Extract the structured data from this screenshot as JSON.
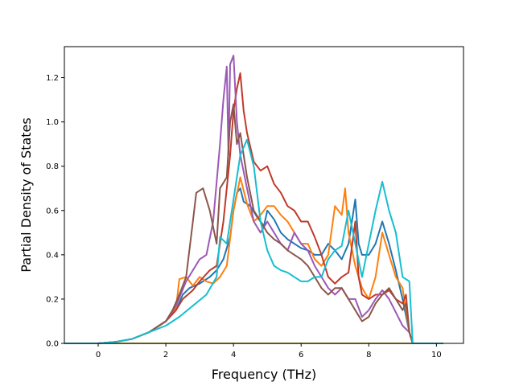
{
  "chart_data": {
    "type": "line",
    "title": "",
    "xlabel": "Frequency (THz)",
    "ylabel": "Partial Density of States",
    "xlim": [
      -1.0,
      10.8
    ],
    "ylim": [
      0.0,
      1.34
    ],
    "xticks": [
      0,
      2,
      4,
      6,
      8,
      10
    ],
    "xtick_labels": [
      "0",
      "2",
      "4",
      "6",
      "8",
      "10"
    ],
    "yticks": [
      0.0,
      0.2,
      0.4,
      0.6,
      0.8,
      1.0,
      1.2
    ],
    "ytick_labels": [
      "0.0",
      "0.2",
      "0.4",
      "0.6",
      "0.8",
      "1.0",
      "1.2"
    ],
    "grid": false,
    "legend": "none",
    "series": [
      {
        "color": "#1f77b4",
        "points": [
          [
            -1.0,
            0.0
          ],
          [
            0.0,
            0.0
          ],
          [
            0.5,
            0.006
          ],
          [
            1.0,
            0.02
          ],
          [
            1.5,
            0.05
          ],
          [
            2.0,
            0.1
          ],
          [
            2.3,
            0.15
          ],
          [
            2.5,
            0.22
          ],
          [
            2.7,
            0.25
          ],
          [
            3.0,
            0.27
          ],
          [
            3.3,
            0.3
          ],
          [
            3.5,
            0.33
          ],
          [
            3.7,
            0.38
          ],
          [
            3.9,
            0.48
          ],
          [
            4.0,
            0.6
          ],
          [
            4.1,
            0.68
          ],
          [
            4.2,
            0.7
          ],
          [
            4.3,
            0.64
          ],
          [
            4.5,
            0.62
          ],
          [
            4.7,
            0.57
          ],
          [
            4.9,
            0.53
          ],
          [
            5.0,
            0.6
          ],
          [
            5.2,
            0.56
          ],
          [
            5.4,
            0.5
          ],
          [
            5.6,
            0.47
          ],
          [
            5.8,
            0.45
          ],
          [
            6.0,
            0.43
          ],
          [
            6.2,
            0.42
          ],
          [
            6.4,
            0.4
          ],
          [
            6.6,
            0.4
          ],
          [
            6.8,
            0.45
          ],
          [
            7.0,
            0.42
          ],
          [
            7.2,
            0.38
          ],
          [
            7.4,
            0.45
          ],
          [
            7.6,
            0.65
          ],
          [
            7.7,
            0.45
          ],
          [
            7.8,
            0.4
          ],
          [
            8.0,
            0.4
          ],
          [
            8.2,
            0.45
          ],
          [
            8.4,
            0.55
          ],
          [
            8.6,
            0.45
          ],
          [
            8.8,
            0.33
          ],
          [
            9.0,
            0.2
          ],
          [
            9.2,
            0.05
          ],
          [
            9.3,
            0.0
          ],
          [
            10.2,
            0.0
          ]
        ]
      },
      {
        "color": "#ff7f0e",
        "points": [
          [
            -1.0,
            0.0
          ],
          [
            0.0,
            0.0
          ],
          [
            0.5,
            0.006
          ],
          [
            1.0,
            0.02
          ],
          [
            1.5,
            0.05
          ],
          [
            2.0,
            0.1
          ],
          [
            2.3,
            0.16
          ],
          [
            2.4,
            0.29
          ],
          [
            2.6,
            0.3
          ],
          [
            2.8,
            0.26
          ],
          [
            3.0,
            0.3
          ],
          [
            3.2,
            0.28
          ],
          [
            3.4,
            0.27
          ],
          [
            3.6,
            0.3
          ],
          [
            3.8,
            0.35
          ],
          [
            4.0,
            0.6
          ],
          [
            4.2,
            0.75
          ],
          [
            4.4,
            0.63
          ],
          [
            4.6,
            0.55
          ],
          [
            4.8,
            0.58
          ],
          [
            5.0,
            0.62
          ],
          [
            5.2,
            0.62
          ],
          [
            5.4,
            0.58
          ],
          [
            5.6,
            0.55
          ],
          [
            5.8,
            0.5
          ],
          [
            6.0,
            0.45
          ],
          [
            6.2,
            0.45
          ],
          [
            6.4,
            0.38
          ],
          [
            6.6,
            0.35
          ],
          [
            6.8,
            0.4
          ],
          [
            7.0,
            0.62
          ],
          [
            7.2,
            0.58
          ],
          [
            7.3,
            0.7
          ],
          [
            7.4,
            0.5
          ],
          [
            7.6,
            0.35
          ],
          [
            7.8,
            0.25
          ],
          [
            8.0,
            0.2
          ],
          [
            8.2,
            0.3
          ],
          [
            8.4,
            0.5
          ],
          [
            8.6,
            0.4
          ],
          [
            8.8,
            0.3
          ],
          [
            9.0,
            0.25
          ],
          [
            9.2,
            0.05
          ],
          [
            9.3,
            0.0
          ],
          [
            10.2,
            0.0
          ]
        ]
      },
      {
        "color": "#bcbd22",
        "points": [
          [
            -1.0,
            0.0
          ],
          [
            10.2,
            0.0
          ]
        ]
      },
      {
        "color": "#c0392b",
        "points": [
          [
            -1.0,
            0.0
          ],
          [
            0.0,
            0.0
          ],
          [
            0.5,
            0.006
          ],
          [
            1.0,
            0.02
          ],
          [
            1.5,
            0.05
          ],
          [
            2.0,
            0.1
          ],
          [
            2.3,
            0.15
          ],
          [
            2.5,
            0.2
          ],
          [
            2.8,
            0.24
          ],
          [
            3.0,
            0.28
          ],
          [
            3.3,
            0.33
          ],
          [
            3.5,
            0.35
          ],
          [
            3.7,
            0.55
          ],
          [
            3.9,
            0.85
          ],
          [
            4.0,
            1.05
          ],
          [
            4.1,
            1.15
          ],
          [
            4.2,
            1.22
          ],
          [
            4.3,
            1.05
          ],
          [
            4.4,
            0.95
          ],
          [
            4.6,
            0.82
          ],
          [
            4.8,
            0.78
          ],
          [
            5.0,
            0.8
          ],
          [
            5.2,
            0.72
          ],
          [
            5.4,
            0.68
          ],
          [
            5.6,
            0.62
          ],
          [
            5.8,
            0.6
          ],
          [
            6.0,
            0.55
          ],
          [
            6.2,
            0.55
          ],
          [
            6.4,
            0.48
          ],
          [
            6.6,
            0.4
          ],
          [
            6.8,
            0.3
          ],
          [
            7.0,
            0.27
          ],
          [
            7.2,
            0.3
          ],
          [
            7.4,
            0.32
          ],
          [
            7.6,
            0.55
          ],
          [
            7.7,
            0.3
          ],
          [
            7.8,
            0.22
          ],
          [
            8.0,
            0.2
          ],
          [
            8.2,
            0.22
          ],
          [
            8.4,
            0.22
          ],
          [
            8.6,
            0.24
          ],
          [
            8.8,
            0.2
          ],
          [
            9.0,
            0.18
          ],
          [
            9.1,
            0.22
          ],
          [
            9.2,
            0.05
          ],
          [
            9.3,
            0.0
          ],
          [
            10.2,
            0.0
          ]
        ]
      },
      {
        "color": "#9b59b6",
        "points": [
          [
            -1.0,
            0.0
          ],
          [
            0.0,
            0.0
          ],
          [
            0.5,
            0.006
          ],
          [
            1.0,
            0.02
          ],
          [
            1.5,
            0.05
          ],
          [
            2.0,
            0.1
          ],
          [
            2.3,
            0.17
          ],
          [
            2.6,
            0.28
          ],
          [
            2.8,
            0.33
          ],
          [
            3.0,
            0.38
          ],
          [
            3.2,
            0.4
          ],
          [
            3.4,
            0.55
          ],
          [
            3.6,
            0.9
          ],
          [
            3.7,
            1.1
          ],
          [
            3.8,
            1.25
          ],
          [
            3.85,
            0.85
          ],
          [
            3.9,
            1.26
          ],
          [
            4.0,
            1.3
          ],
          [
            4.1,
            1.0
          ],
          [
            4.2,
            0.85
          ],
          [
            4.4,
            0.7
          ],
          [
            4.6,
            0.55
          ],
          [
            4.8,
            0.5
          ],
          [
            5.0,
            0.55
          ],
          [
            5.2,
            0.5
          ],
          [
            5.4,
            0.45
          ],
          [
            5.6,
            0.42
          ],
          [
            5.8,
            0.5
          ],
          [
            6.0,
            0.45
          ],
          [
            6.2,
            0.42
          ],
          [
            6.4,
            0.35
          ],
          [
            6.6,
            0.3
          ],
          [
            6.8,
            0.25
          ],
          [
            7.0,
            0.22
          ],
          [
            7.2,
            0.25
          ],
          [
            7.4,
            0.2
          ],
          [
            7.6,
            0.2
          ],
          [
            7.8,
            0.12
          ],
          [
            8.0,
            0.15
          ],
          [
            8.2,
            0.2
          ],
          [
            8.4,
            0.24
          ],
          [
            8.6,
            0.2
          ],
          [
            8.8,
            0.14
          ],
          [
            9.0,
            0.08
          ],
          [
            9.2,
            0.05
          ],
          [
            9.3,
            0.0
          ],
          [
            10.2,
            0.0
          ]
        ]
      },
      {
        "color": "#8c564b",
        "points": [
          [
            -1.0,
            0.0
          ],
          [
            0.0,
            0.0
          ],
          [
            0.5,
            0.006
          ],
          [
            1.0,
            0.02
          ],
          [
            1.5,
            0.05
          ],
          [
            2.0,
            0.1
          ],
          [
            2.2,
            0.15
          ],
          [
            2.4,
            0.22
          ],
          [
            2.6,
            0.3
          ],
          [
            2.8,
            0.55
          ],
          [
            2.9,
            0.68
          ],
          [
            3.1,
            0.7
          ],
          [
            3.3,
            0.6
          ],
          [
            3.5,
            0.45
          ],
          [
            3.6,
            0.7
          ],
          [
            3.8,
            0.75
          ],
          [
            3.9,
            1.0
          ],
          [
            4.0,
            1.08
          ],
          [
            4.1,
            0.9
          ],
          [
            4.2,
            0.95
          ],
          [
            4.4,
            0.75
          ],
          [
            4.6,
            0.6
          ],
          [
            4.8,
            0.55
          ],
          [
            5.0,
            0.5
          ],
          [
            5.2,
            0.47
          ],
          [
            5.4,
            0.45
          ],
          [
            5.6,
            0.42
          ],
          [
            5.8,
            0.4
          ],
          [
            6.0,
            0.38
          ],
          [
            6.2,
            0.35
          ],
          [
            6.4,
            0.3
          ],
          [
            6.6,
            0.25
          ],
          [
            6.8,
            0.22
          ],
          [
            7.0,
            0.25
          ],
          [
            7.2,
            0.25
          ],
          [
            7.4,
            0.2
          ],
          [
            7.6,
            0.15
          ],
          [
            7.8,
            0.1
          ],
          [
            8.0,
            0.12
          ],
          [
            8.2,
            0.18
          ],
          [
            8.4,
            0.22
          ],
          [
            8.6,
            0.25
          ],
          [
            8.8,
            0.2
          ],
          [
            9.0,
            0.15
          ],
          [
            9.1,
            0.18
          ],
          [
            9.2,
            0.05
          ],
          [
            9.3,
            0.0
          ],
          [
            10.2,
            0.0
          ]
        ]
      },
      {
        "color": "#17becf",
        "points": [
          [
            -1.0,
            0.0
          ],
          [
            0.0,
            0.0
          ],
          [
            0.5,
            0.006
          ],
          [
            1.0,
            0.02
          ],
          [
            1.5,
            0.05
          ],
          [
            2.0,
            0.08
          ],
          [
            2.4,
            0.12
          ],
          [
            2.8,
            0.17
          ],
          [
            3.2,
            0.22
          ],
          [
            3.5,
            0.3
          ],
          [
            3.6,
            0.48
          ],
          [
            3.8,
            0.45
          ],
          [
            4.0,
            0.65
          ],
          [
            4.2,
            0.85
          ],
          [
            4.4,
            0.92
          ],
          [
            4.6,
            0.8
          ],
          [
            4.8,
            0.55
          ],
          [
            5.0,
            0.42
          ],
          [
            5.2,
            0.35
          ],
          [
            5.4,
            0.33
          ],
          [
            5.6,
            0.32
          ],
          [
            5.8,
            0.3
          ],
          [
            6.0,
            0.28
          ],
          [
            6.2,
            0.28
          ],
          [
            6.4,
            0.3
          ],
          [
            6.6,
            0.3
          ],
          [
            6.8,
            0.38
          ],
          [
            7.0,
            0.42
          ],
          [
            7.2,
            0.44
          ],
          [
            7.4,
            0.6
          ],
          [
            7.6,
            0.45
          ],
          [
            7.8,
            0.3
          ],
          [
            8.0,
            0.45
          ],
          [
            8.2,
            0.6
          ],
          [
            8.4,
            0.73
          ],
          [
            8.6,
            0.6
          ],
          [
            8.8,
            0.5
          ],
          [
            9.0,
            0.3
          ],
          [
            9.2,
            0.28
          ],
          [
            9.3,
            0.0
          ],
          [
            10.2,
            0.0
          ]
        ]
      }
    ]
  }
}
